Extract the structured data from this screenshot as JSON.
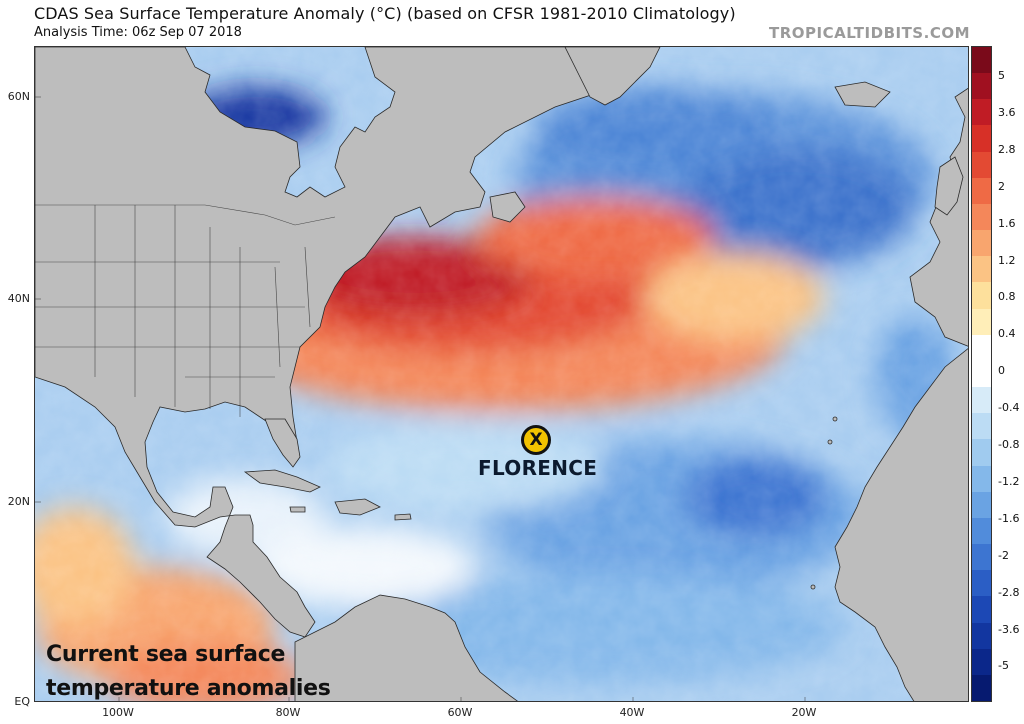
{
  "header": {
    "title": "CDAS Sea Surface Temperature Anomaly (°C) (based on CFSR 1981-2010 Climatology)",
    "subtitle": "Analysis Time: 06z Sep 07 2018",
    "brand": "TROPICALTIDBITS.COM"
  },
  "map": {
    "latitude_labels": [
      "60N",
      "40N",
      "20N",
      "EQ"
    ],
    "longitude_labels": [
      "100W",
      "80W",
      "60W",
      "40W",
      "20W"
    ],
    "land_color": "#bdbdbd",
    "ocean_base_color": "#a9cdf0"
  },
  "storm": {
    "marker_symbol": "X",
    "name": "FLORENCE"
  },
  "annotation": {
    "line1": "Current sea surface",
    "line2": "temperature anomalies"
  },
  "colorbar": {
    "tick_labels": [
      "5",
      "3.6",
      "2.8",
      "2",
      "1.6",
      "1.2",
      "0.8",
      "0.4",
      "0",
      "-0.4",
      "-0.8",
      "-1.2",
      "-1.6",
      "-2",
      "-2.8",
      "-3.6",
      "-5"
    ],
    "colors_top_to_bottom": [
      "#7a0a1a",
      "#a01020",
      "#c01c25",
      "#d73027",
      "#e34a33",
      "#ef6a45",
      "#f4875a",
      "#f8a56e",
      "#fbc384",
      "#fde09c",
      "#ffeeb8",
      "#ffffff",
      "#ffffff",
      "#d7ebf8",
      "#bcdcf4",
      "#a0cbef",
      "#84b8ea",
      "#6aa3e3",
      "#518cdb",
      "#3d75d1",
      "#2b5ec5",
      "#1c48b5",
      "#1236a0",
      "#0b278a",
      "#061a70"
    ]
  }
}
